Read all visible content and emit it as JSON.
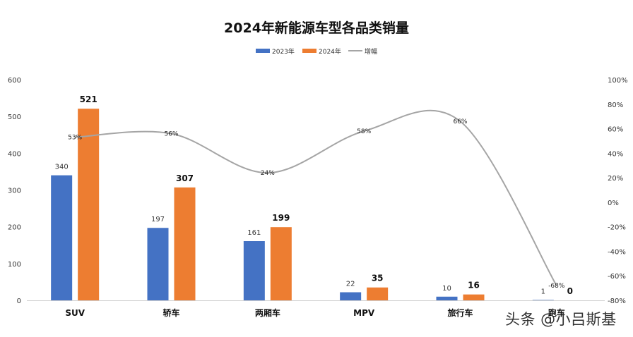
{
  "chart_data": {
    "type": "bar",
    "title": "2024年新能源车型各品类销量",
    "categories": [
      "SUV",
      "轿车",
      "两厢车",
      "MPV",
      "旅行车",
      "跑车"
    ],
    "series": [
      {
        "name": "2023年",
        "values": [
          340,
          197,
          161,
          22,
          10,
          1
        ],
        "color": "#4472C4"
      },
      {
        "name": "2024年",
        "values": [
          521,
          307,
          199,
          35,
          16,
          0
        ],
        "color": "#ED7D31"
      }
    ],
    "growth": {
      "name": "增幅",
      "values": [
        53,
        56,
        24,
        58,
        66,
        -68
      ],
      "labels": [
        "53%",
        "56%",
        "24%",
        "58%",
        "66%",
        "-68%"
      ],
      "color": "#A5A5A5"
    },
    "ylim": [
      0,
      600
    ],
    "yticks": [
      "0",
      "100",
      "200",
      "300",
      "400",
      "500",
      "600"
    ],
    "y2lim": [
      -80,
      100
    ],
    "y2ticks": [
      "-80%",
      "-60%",
      "-40%",
      "-20%",
      "0%",
      "20%",
      "40%",
      "60%",
      "80%",
      "100%"
    ],
    "legend_position": "top-center",
    "grid": false
  },
  "watermark": "头条 @小吕斯基"
}
